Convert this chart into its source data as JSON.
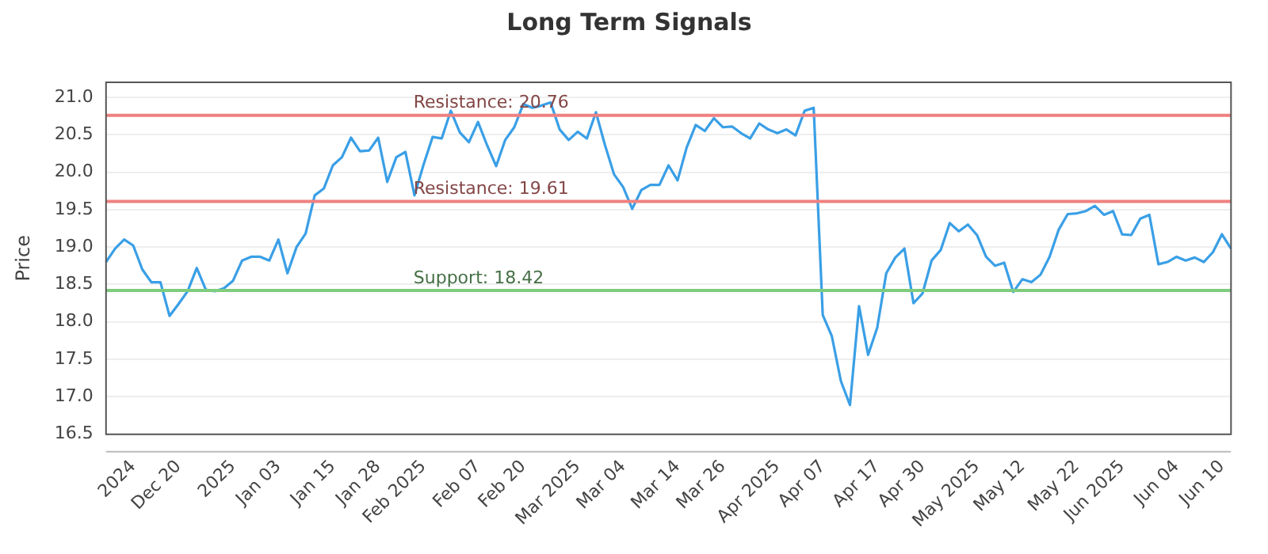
{
  "chart_data": {
    "type": "line",
    "title": "Long Term Signals",
    "ylabel": "Price",
    "categories": [
      null,
      null,
      null,
      "2024",
      null,
      null,
      null,
      null,
      "Dec 20",
      null,
      null,
      null,
      null,
      null,
      "2025",
      null,
      null,
      null,
      null,
      "Jan 03",
      null,
      null,
      null,
      null,
      null,
      "Jan 15",
      null,
      null,
      null,
      null,
      "Jan 28",
      null,
      null,
      null,
      null,
      "Feb 2025",
      null,
      null,
      null,
      null,
      null,
      "Feb 07",
      null,
      null,
      null,
      null,
      "Feb 20",
      null,
      null,
      null,
      null,
      null,
      "Mar 2025",
      null,
      null,
      null,
      null,
      "Mar 04",
      null,
      null,
      null,
      null,
      null,
      "Mar 14",
      null,
      null,
      null,
      null,
      "Mar 26",
      null,
      null,
      null,
      null,
      null,
      "Apr 2025",
      null,
      null,
      null,
      null,
      "Apr 07",
      null,
      null,
      null,
      null,
      null,
      "Apr 17",
      null,
      null,
      null,
      null,
      "Apr 30",
      null,
      null,
      null,
      null,
      null,
      "May 2025",
      null,
      null,
      null,
      null,
      "May 12",
      null,
      null,
      null,
      null,
      null,
      "May 22",
      null,
      null,
      null,
      null,
      "Jun 2025",
      null,
      null,
      null,
      null,
      null,
      "Jun 04",
      null,
      null,
      null,
      null,
      "Jun 10",
      null
    ],
    "series": [
      {
        "color": "#3a9fe6",
        "values": [
          18.8,
          18.98,
          19.1,
          19.02,
          18.7,
          18.53,
          18.53,
          18.08,
          18.24,
          18.41,
          18.72,
          18.43,
          18.41,
          18.45,
          18.55,
          18.82,
          18.87,
          18.87,
          18.82,
          19.1,
          18.65,
          19.0,
          19.18,
          19.69,
          19.78,
          20.09,
          20.2,
          20.46,
          20.28,
          20.29,
          20.46,
          19.87,
          20.2,
          20.27,
          19.69,
          20.1,
          20.47,
          20.45,
          20.82,
          20.53,
          20.4,
          20.67,
          20.36,
          20.08,
          20.43,
          20.6,
          20.91,
          20.86,
          20.89,
          20.93,
          20.57,
          20.43,
          20.54,
          20.45,
          20.8,
          20.36,
          19.97,
          19.8,
          19.51,
          19.76,
          19.83,
          19.83,
          20.09,
          19.89,
          20.33,
          20.63,
          20.55,
          20.72,
          20.6,
          20.61,
          20.52,
          20.45,
          20.65,
          20.57,
          20.52,
          20.57,
          20.49,
          20.82,
          20.86,
          18.09,
          17.81,
          17.21,
          16.89,
          18.21,
          17.56,
          17.92,
          18.65,
          18.86,
          18.98,
          18.25,
          18.38,
          18.82,
          18.96,
          19.32,
          19.21,
          19.3,
          19.16,
          18.87,
          18.75,
          18.79,
          18.4,
          18.57,
          18.53,
          18.63,
          18.87,
          19.23,
          19.44,
          19.45,
          19.48,
          19.55,
          19.43,
          19.48,
          19.17,
          19.16,
          19.38,
          19.43,
          18.77,
          18.8,
          18.87,
          18.82,
          18.86,
          18.8,
          18.93,
          19.17,
          18.98
        ]
      }
    ],
    "ylim": [
      16.5,
      21.2
    ],
    "yticks": [
      16.5,
      {
        "value": 17,
        "label": "17.0"
      },
      17.5,
      {
        "value": 18,
        "label": "18.0"
      },
      18.5,
      {
        "value": 19,
        "label": "19.0"
      },
      19.5,
      {
        "value": 20,
        "label": "20.0"
      },
      20.5,
      {
        "value": 21,
        "label": "21.0"
      }
    ],
    "grid": "y",
    "marker": "none",
    "line_style": "solid",
    "legend": false,
    "ref_lines": [
      {
        "axis": "y",
        "value": 20.76,
        "label": "Resistance: 20.76",
        "color": "#f08080"
      },
      {
        "axis": "y",
        "value": 19.61,
        "label": "Resistance: 19.61",
        "color": "#f08080"
      },
      {
        "axis": "y",
        "value": 18.42,
        "label": "Support: 18.42",
        "color": "#7fcc7f"
      }
    ]
  }
}
